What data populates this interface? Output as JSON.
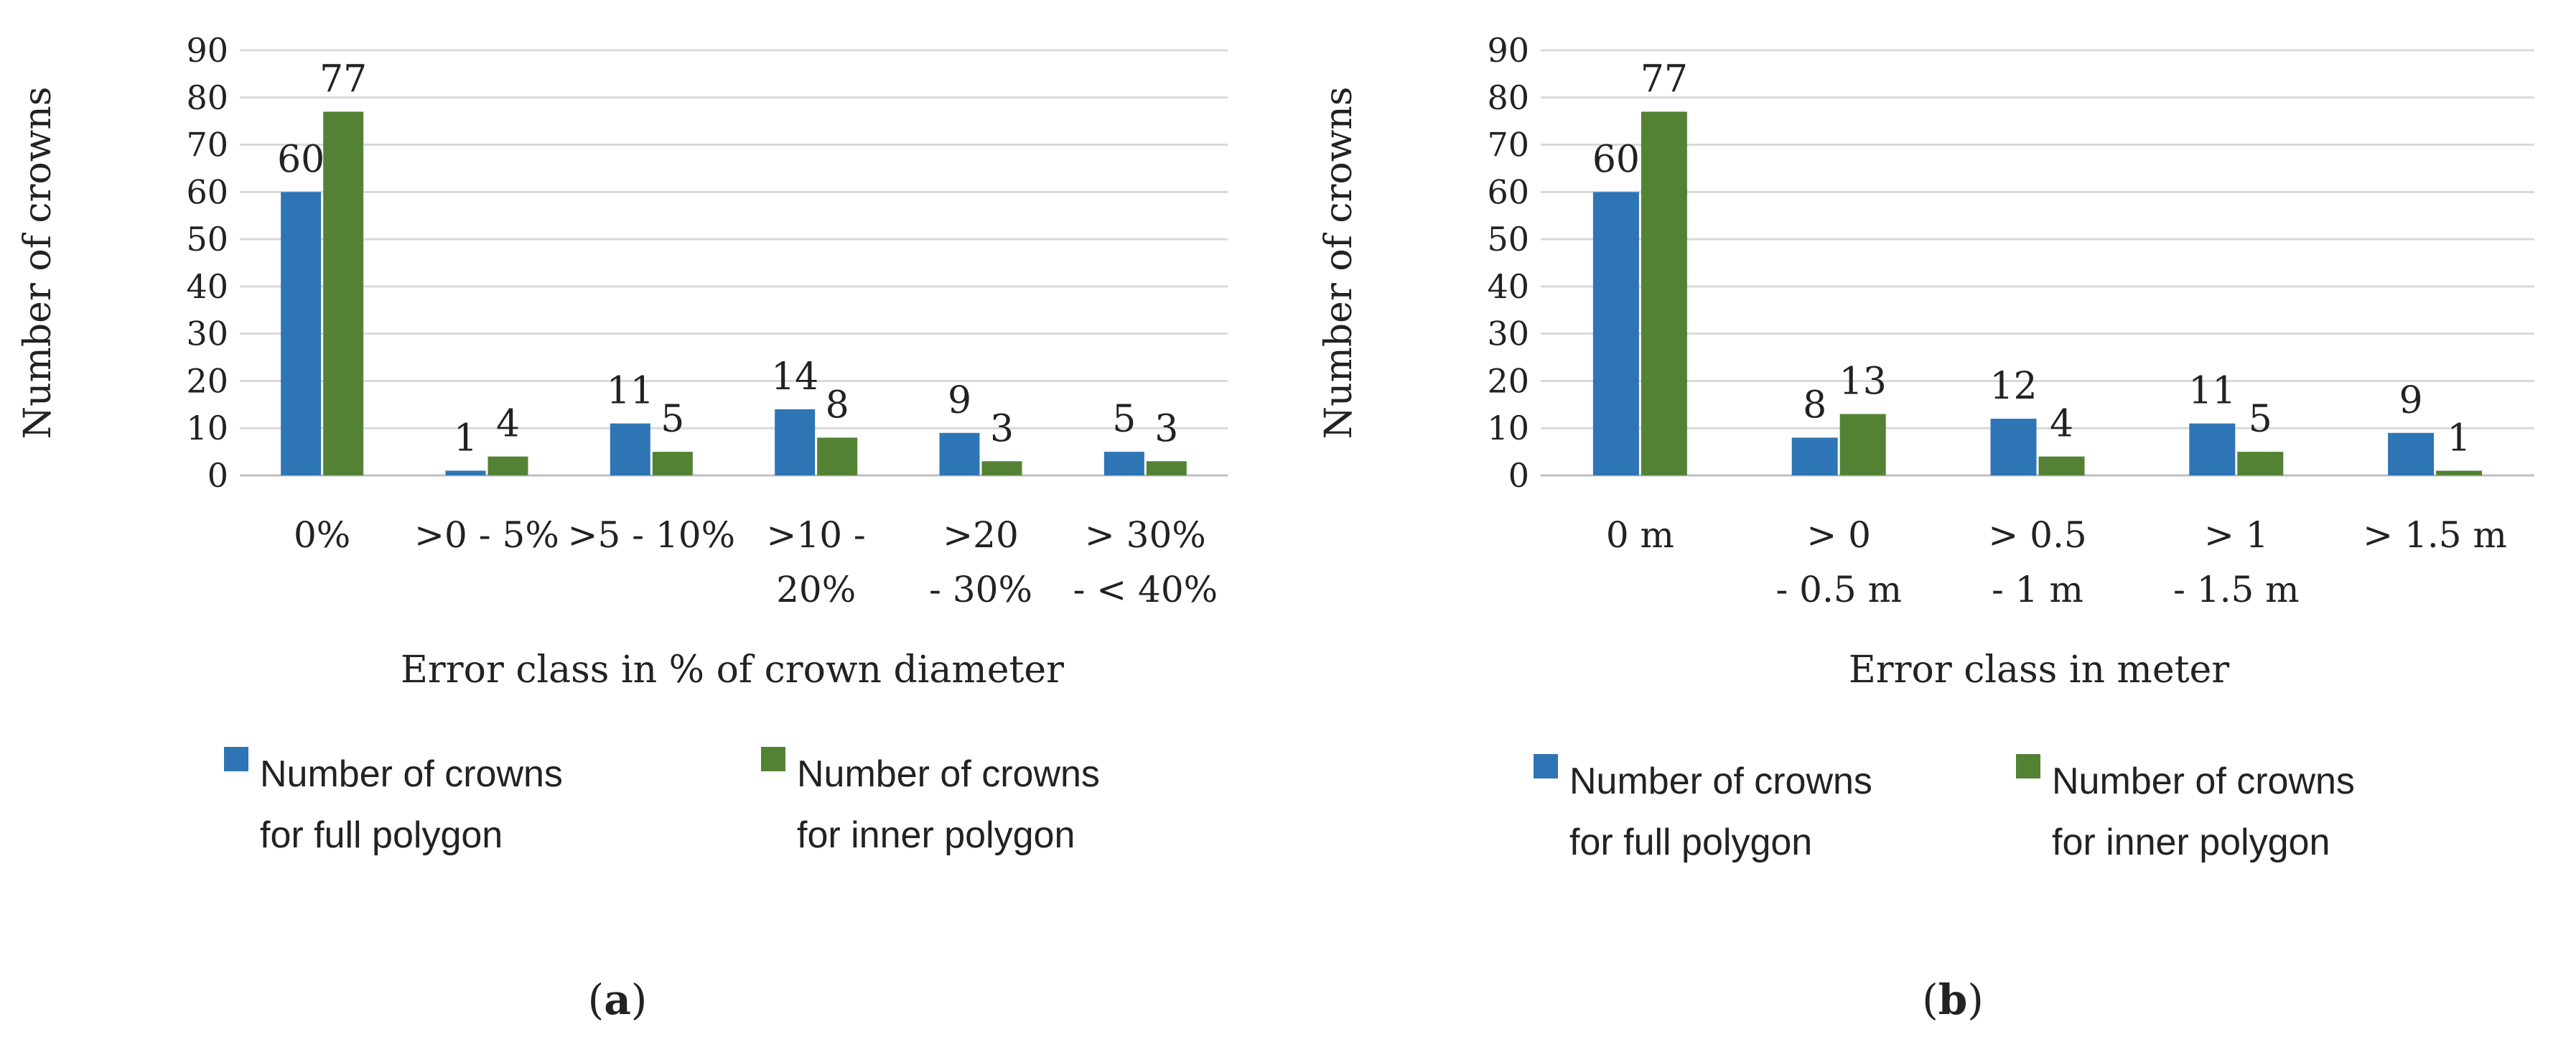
{
  "colors": {
    "full": "#2e75b6",
    "inner": "#548235",
    "grid": "#d9d9d9",
    "axis": "#bfbfbf",
    "text": "#222222"
  },
  "legend": {
    "full_line1": "Number of crowns",
    "full_line2": "for full polygon",
    "inner_line1": "Number of crowns",
    "inner_line2": "for inner polygon"
  },
  "chart_data": [
    {
      "type": "bar",
      "panel_label": "a",
      "ylabel": "Number of crowns",
      "xlabel": "Error class in % of crown diameter",
      "ylim": [
        0,
        90
      ],
      "yticks": [
        0,
        10,
        20,
        30,
        40,
        50,
        60,
        70,
        80,
        90
      ],
      "grid": true,
      "legend_position": "bottom",
      "categories": [
        [
          "0%"
        ],
        [
          ">0 - 5%"
        ],
        [
          ">5 - 10%"
        ],
        [
          ">10 -",
          "20%"
        ],
        [
          ">20",
          "- 30%"
        ],
        [
          "> 30%",
          "- < 40%"
        ]
      ],
      "series": [
        {
          "name": "Number of crowns for full polygon",
          "values": [
            60,
            1,
            11,
            14,
            9,
            5
          ]
        },
        {
          "name": "Number of crowns for inner polygon",
          "values": [
            77,
            4,
            5,
            8,
            3,
            3
          ]
        }
      ]
    },
    {
      "type": "bar",
      "panel_label": "b",
      "ylabel": "Number of crowns",
      "xlabel": "Error class in meter",
      "ylim": [
        0,
        90
      ],
      "yticks": [
        0,
        10,
        20,
        30,
        40,
        50,
        60,
        70,
        80,
        90
      ],
      "grid": true,
      "legend_position": "bottom",
      "categories": [
        [
          "0 m"
        ],
        [
          "> 0",
          "- 0.5 m"
        ],
        [
          "> 0.5",
          "- 1 m"
        ],
        [
          "> 1",
          "- 1.5 m"
        ],
        [
          "> 1.5 m"
        ]
      ],
      "series": [
        {
          "name": "Number of crowns for full polygon",
          "values": [
            60,
            8,
            12,
            11,
            9
          ]
        },
        {
          "name": "Number of crowns for inner polygon",
          "values": [
            77,
            13,
            4,
            5,
            1
          ]
        }
      ]
    }
  ]
}
